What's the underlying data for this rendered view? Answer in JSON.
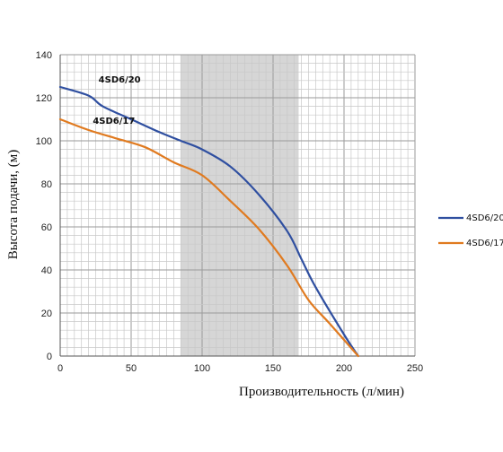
{
  "chart_data": {
    "type": "line",
    "xlabel": "Производительность (л/мин)",
    "ylabel": "Высота подачи, (м)",
    "xlim": [
      0,
      250
    ],
    "ylim": [
      0,
      140
    ],
    "x_ticks": [
      "0",
      "50",
      "100",
      "150",
      "200",
      "250"
    ],
    "y_ticks": [
      "0",
      "20",
      "40",
      "60",
      "80",
      "100",
      "120",
      "140"
    ],
    "grid": true,
    "legend_position": "right",
    "highlight_range_x": [
      85,
      168
    ],
    "colors": {
      "highlight": "#d6d6d6"
    },
    "series": [
      {
        "name": "4SD6/20",
        "color": "#2f4fa0",
        "points": [
          [
            0,
            125
          ],
          [
            20,
            121
          ],
          [
            30,
            116
          ],
          [
            50,
            110
          ],
          [
            70,
            104
          ],
          [
            85,
            100
          ],
          [
            100,
            96
          ],
          [
            120,
            88
          ],
          [
            140,
            75
          ],
          [
            160,
            58
          ],
          [
            170,
            45
          ],
          [
            180,
            32
          ],
          [
            200,
            10
          ],
          [
            210,
            0
          ]
        ]
      },
      {
        "name": "4SD6/17",
        "color": "#e07a1f",
        "points": [
          [
            0,
            110
          ],
          [
            20,
            105
          ],
          [
            40,
            101
          ],
          [
            60,
            97
          ],
          [
            80,
            90
          ],
          [
            100,
            84
          ],
          [
            120,
            72
          ],
          [
            140,
            59
          ],
          [
            160,
            42
          ],
          [
            175,
            26
          ],
          [
            190,
            15
          ],
          [
            210,
            0
          ]
        ]
      }
    ],
    "annotations": [
      {
        "text": "4SD6/20",
        "x": 27,
        "y": 127
      },
      {
        "text": "4SD6/17",
        "x": 23,
        "y": 108
      }
    ]
  }
}
